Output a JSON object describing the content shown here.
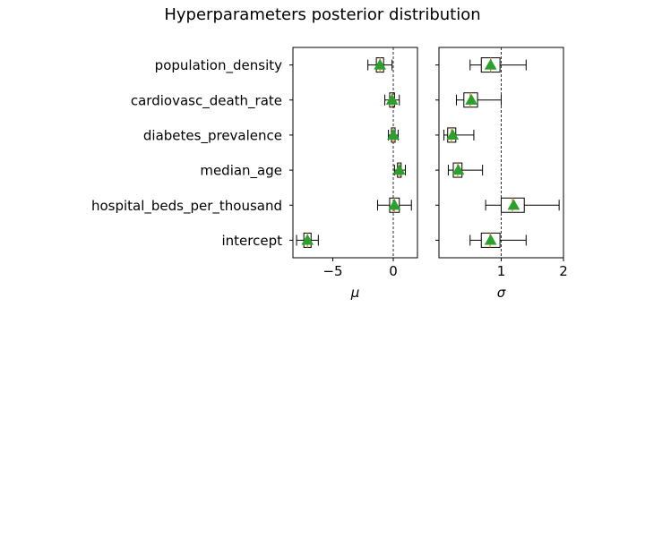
{
  "title": "Hyperparameters posterior distribution",
  "chart_data": {
    "type": "boxplot",
    "title": "Hyperparameters posterior distribution",
    "categories": [
      "population_density",
      "cardiovasc_death_rate",
      "diabetes_prevalence",
      "median_age",
      "hospital_beds_per_thousand",
      "intercept"
    ],
    "reference_line": {
      "style": "dashed",
      "color": "#000000"
    },
    "mean_marker_color": "#2ca02c",
    "median_color": "#ff7f0e",
    "panels": [
      {
        "name": "mu",
        "xlabel": "μ",
        "xlim": [
          -8.3,
          2.0
        ],
        "ticks": [
          -5,
          0
        ],
        "tick_labels": [
          "−5",
          "0"
        ],
        "reference_x": 0,
        "boxes": [
          {
            "category": "population_density",
            "whislo": -2.1,
            "q1": -1.4,
            "median": -1.1,
            "q3": -0.8,
            "whishi": -0.1,
            "mean": -1.1
          },
          {
            "category": "cardiovasc_death_rate",
            "whislo": -0.7,
            "q1": -0.3,
            "median": -0.1,
            "q3": 0.1,
            "whishi": 0.5,
            "mean": -0.1
          },
          {
            "category": "diabetes_prevalence",
            "whislo": -0.4,
            "q1": -0.15,
            "median": 0.0,
            "q3": 0.15,
            "whishi": 0.4,
            "mean": 0.0
          },
          {
            "category": "median_age",
            "whislo": 0.1,
            "q1": 0.35,
            "median": 0.5,
            "q3": 0.65,
            "whishi": 1.0,
            "mean": 0.5
          },
          {
            "category": "hospital_beds_per_thousand",
            "whislo": -1.3,
            "q1": -0.3,
            "median": 0.1,
            "q3": 0.5,
            "whishi": 1.5,
            "mean": 0.1
          },
          {
            "category": "intercept",
            "whislo": -8.0,
            "q1": -7.4,
            "median": -7.1,
            "q3": -6.8,
            "whishi": -6.2,
            "mean": -7.1
          }
        ]
      },
      {
        "name": "sigma",
        "xlabel": "σ",
        "xlim": [
          0.0,
          2.0
        ],
        "ticks": [
          1,
          2
        ],
        "tick_labels": [
          "1",
          "2"
        ],
        "reference_x": 1,
        "boxes": [
          {
            "category": "population_density",
            "whislo": 0.5,
            "q1": 0.68,
            "median": 0.83,
            "q3": 0.98,
            "whishi": 1.4,
            "mean": 0.83
          },
          {
            "category": "cardiovasc_death_rate",
            "whislo": 0.28,
            "q1": 0.4,
            "median": 0.5,
            "q3": 0.62,
            "whishi": 1.0,
            "mean": 0.52
          },
          {
            "category": "diabetes_prevalence",
            "whislo": 0.08,
            "q1": 0.14,
            "median": 0.2,
            "q3": 0.27,
            "whishi": 0.56,
            "mean": 0.22
          },
          {
            "category": "median_age",
            "whislo": 0.15,
            "q1": 0.23,
            "median": 0.3,
            "q3": 0.37,
            "whishi": 0.7,
            "mean": 0.31
          },
          {
            "category": "hospital_beds_per_thousand",
            "whislo": 0.75,
            "q1": 1.0,
            "median": 1.18,
            "q3": 1.37,
            "whishi": 1.93,
            "mean": 1.2
          },
          {
            "category": "intercept",
            "whislo": 0.5,
            "q1": 0.68,
            "median": 0.82,
            "q3": 0.98,
            "whishi": 1.4,
            "mean": 0.83
          }
        ]
      }
    ]
  }
}
